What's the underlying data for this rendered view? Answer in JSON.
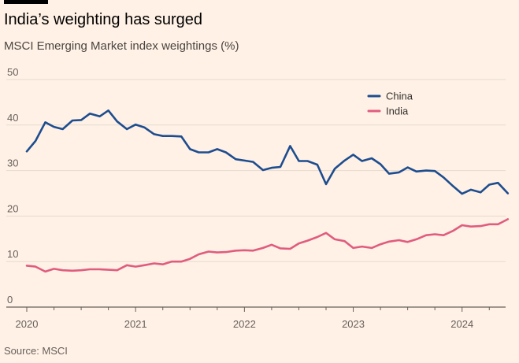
{
  "header": {
    "title": "India’s weighting has surged",
    "subtitle": "MSCI Emerging Market index weightings (%)"
  },
  "footer": {
    "source": "Source: MSCI"
  },
  "colors": {
    "china": "#1d4d8f",
    "india": "#e05c7f",
    "grid": "#e6d9ce",
    "axis": "#66605c",
    "background": "#fff1e5"
  },
  "chart_data": {
    "type": "line",
    "title": "India’s weighting has surged",
    "subtitle": "MSCI Emerging Market index weightings (%)",
    "xlabel": "",
    "ylabel": "",
    "ylim": [
      0,
      50
    ],
    "yticks": [
      0,
      10,
      20,
      30,
      40,
      50
    ],
    "xlim": [
      2020.0,
      2024.4
    ],
    "xticks": [
      {
        "value": 2020,
        "label": "2020"
      },
      {
        "value": 2021,
        "label": "2021"
      },
      {
        "value": 2022,
        "label": "2022"
      },
      {
        "value": 2023,
        "label": "2023"
      },
      {
        "value": 2024,
        "label": "2024"
      }
    ],
    "grid": true,
    "legend_position": "top-right",
    "series": [
      {
        "name": "China",
        "color": "#1d4d8f",
        "points": [
          [
            2020.0,
            34.2
          ],
          [
            2020.08,
            36.5
          ],
          [
            2020.17,
            40.6
          ],
          [
            2020.25,
            39.6
          ],
          [
            2020.33,
            39.1
          ],
          [
            2020.42,
            41.0
          ],
          [
            2020.5,
            41.1
          ],
          [
            2020.58,
            42.5
          ],
          [
            2020.67,
            41.9
          ],
          [
            2020.75,
            43.2
          ],
          [
            2020.83,
            40.8
          ],
          [
            2020.92,
            39.1
          ],
          [
            2021.0,
            40.1
          ],
          [
            2021.08,
            39.5
          ],
          [
            2021.17,
            38.0
          ],
          [
            2021.25,
            37.6
          ],
          [
            2021.33,
            37.6
          ],
          [
            2021.42,
            37.5
          ],
          [
            2021.5,
            34.7
          ],
          [
            2021.58,
            34.0
          ],
          [
            2021.67,
            34.0
          ],
          [
            2021.75,
            34.7
          ],
          [
            2021.83,
            34.0
          ],
          [
            2021.92,
            32.5
          ],
          [
            2022.0,
            32.2
          ],
          [
            2022.08,
            31.9
          ],
          [
            2022.17,
            30.1
          ],
          [
            2022.25,
            30.6
          ],
          [
            2022.33,
            30.8
          ],
          [
            2022.42,
            35.4
          ],
          [
            2022.5,
            32.1
          ],
          [
            2022.58,
            32.1
          ],
          [
            2022.67,
            31.3
          ],
          [
            2022.75,
            27.0
          ],
          [
            2022.83,
            30.4
          ],
          [
            2022.92,
            32.2
          ],
          [
            2023.0,
            33.5
          ],
          [
            2023.08,
            32.1
          ],
          [
            2023.17,
            32.7
          ],
          [
            2023.25,
            31.4
          ],
          [
            2023.33,
            29.3
          ],
          [
            2023.42,
            29.6
          ],
          [
            2023.5,
            30.7
          ],
          [
            2023.58,
            29.8
          ],
          [
            2023.67,
            30.0
          ],
          [
            2023.75,
            29.9
          ],
          [
            2023.83,
            28.5
          ],
          [
            2023.92,
            26.5
          ],
          [
            2024.0,
            24.9
          ],
          [
            2024.08,
            25.8
          ],
          [
            2024.17,
            25.2
          ],
          [
            2024.25,
            26.9
          ],
          [
            2024.33,
            27.3
          ],
          [
            2024.42,
            25.0
          ]
        ]
      },
      {
        "name": "India",
        "color": "#e05c7f",
        "points": [
          [
            2020.0,
            9.1
          ],
          [
            2020.08,
            8.9
          ],
          [
            2020.17,
            7.8
          ],
          [
            2020.25,
            8.4
          ],
          [
            2020.33,
            8.1
          ],
          [
            2020.42,
            8.0
          ],
          [
            2020.5,
            8.1
          ],
          [
            2020.58,
            8.3
          ],
          [
            2020.67,
            8.3
          ],
          [
            2020.75,
            8.2
          ],
          [
            2020.83,
            8.1
          ],
          [
            2020.92,
            9.2
          ],
          [
            2021.0,
            8.9
          ],
          [
            2021.08,
            9.2
          ],
          [
            2021.17,
            9.6
          ],
          [
            2021.25,
            9.4
          ],
          [
            2021.33,
            10.0
          ],
          [
            2021.42,
            10.0
          ],
          [
            2021.5,
            10.6
          ],
          [
            2021.58,
            11.6
          ],
          [
            2021.67,
            12.2
          ],
          [
            2021.75,
            12.0
          ],
          [
            2021.83,
            12.1
          ],
          [
            2021.92,
            12.4
          ],
          [
            2022.0,
            12.5
          ],
          [
            2022.08,
            12.4
          ],
          [
            2022.17,
            13.0
          ],
          [
            2022.25,
            13.7
          ],
          [
            2022.33,
            12.9
          ],
          [
            2022.42,
            12.8
          ],
          [
            2022.5,
            14.0
          ],
          [
            2022.58,
            14.6
          ],
          [
            2022.67,
            15.4
          ],
          [
            2022.75,
            16.3
          ],
          [
            2022.83,
            14.9
          ],
          [
            2022.92,
            14.5
          ],
          [
            2023.0,
            13.0
          ],
          [
            2023.08,
            13.3
          ],
          [
            2023.17,
            13.0
          ],
          [
            2023.25,
            13.8
          ],
          [
            2023.33,
            14.4
          ],
          [
            2023.42,
            14.7
          ],
          [
            2023.5,
            14.3
          ],
          [
            2023.58,
            14.9
          ],
          [
            2023.67,
            15.8
          ],
          [
            2023.75,
            16.0
          ],
          [
            2023.83,
            15.8
          ],
          [
            2023.92,
            16.8
          ],
          [
            2024.0,
            18.0
          ],
          [
            2024.08,
            17.7
          ],
          [
            2024.17,
            17.8
          ],
          [
            2024.25,
            18.2
          ],
          [
            2024.33,
            18.2
          ],
          [
            2024.42,
            19.3
          ]
        ]
      }
    ]
  }
}
